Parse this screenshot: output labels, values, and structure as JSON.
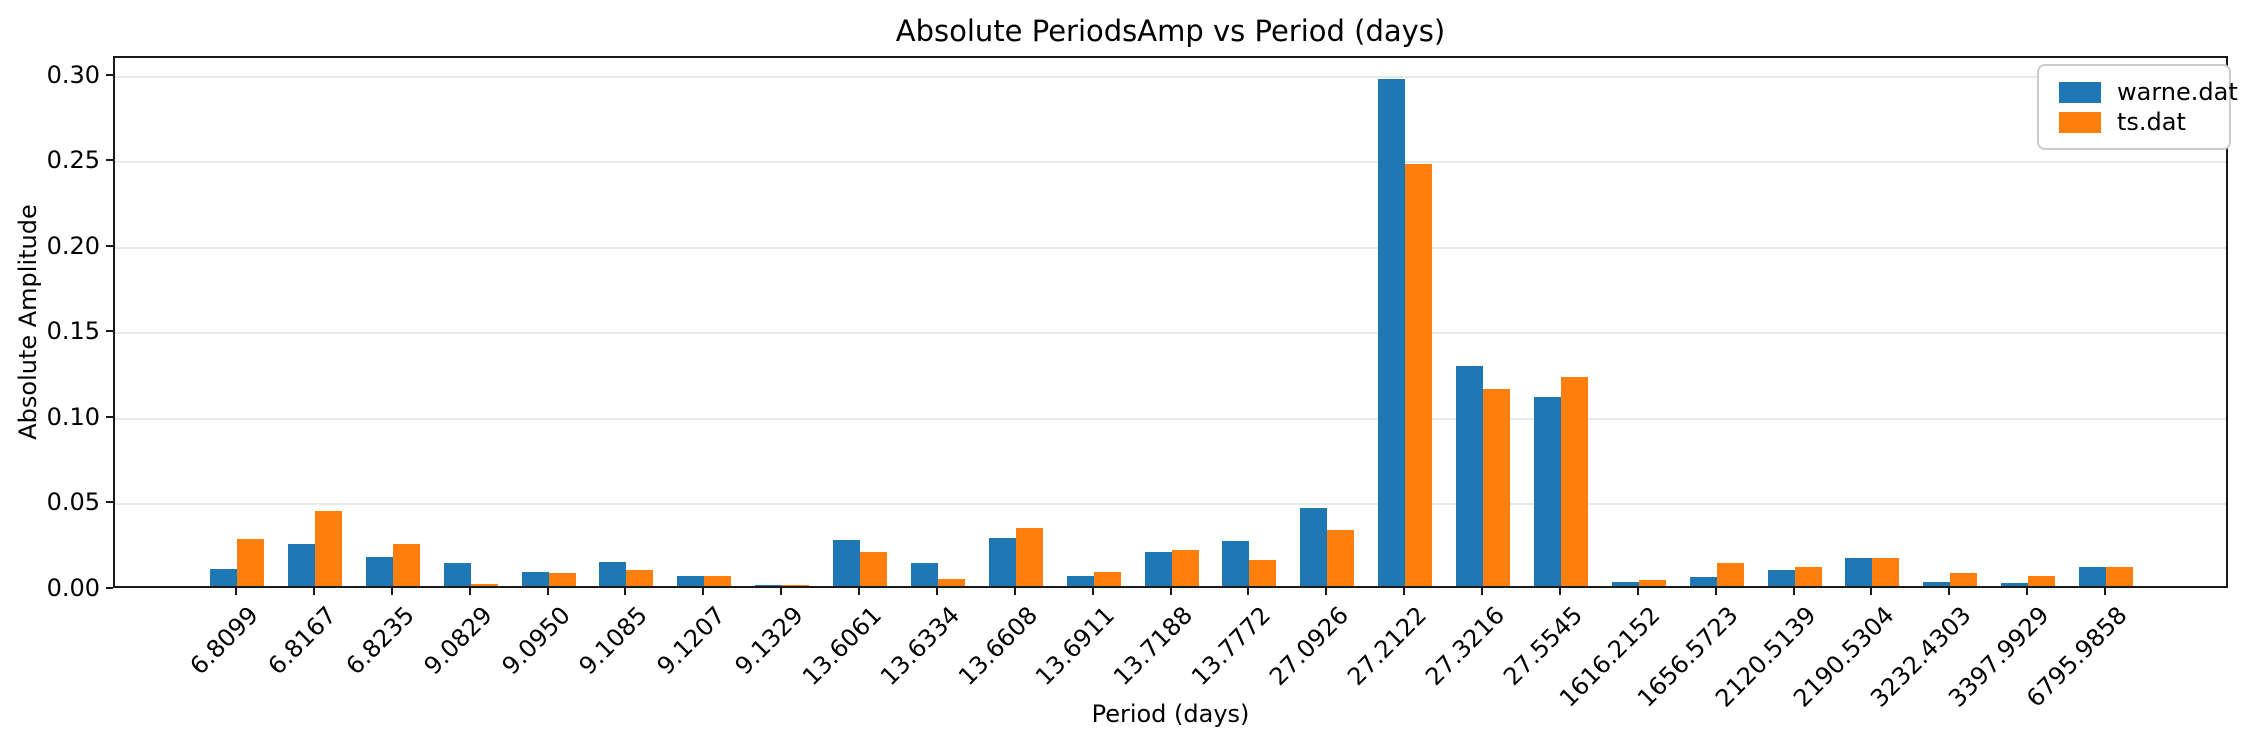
{
  "figure": {
    "title": "Absolute PeriodsAmp vs Period (days)",
    "xlabel": "Period (days)",
    "ylabel": "Absolute Amplitude"
  },
  "legend": {
    "position": "upper right",
    "items": [
      {
        "label": "warne.dat",
        "color": "#1f77b4"
      },
      {
        "label": "ts.dat",
        "color": "#ff7f0e"
      }
    ]
  },
  "chart_data": {
    "type": "bar",
    "title": "Absolute PeriodsAmp vs Period (days)",
    "xlabel": "Period (days)",
    "ylabel": "Absolute Amplitude",
    "categories": [
      "6.8099",
      "6.8167",
      "6.8235",
      "9.0829",
      "9.0950",
      "9.1085",
      "9.1207",
      "9.1329",
      "13.6061",
      "13.6334",
      "13.6608",
      "13.6911",
      "13.7188",
      "13.7772",
      "27.0926",
      "27.2122",
      "27.3216",
      "27.5545",
      "1616.2152",
      "1656.5723",
      "2120.5139",
      "2190.5304",
      "3232.4303",
      "3397.9929",
      "6795.9858"
    ],
    "series": [
      {
        "name": "warne.dat",
        "color": "#1f77b4",
        "values": [
          0.0102,
          0.0245,
          0.0172,
          0.0132,
          0.0083,
          0.014,
          0.0061,
          0.0003,
          0.0268,
          0.0133,
          0.0279,
          0.0056,
          0.0198,
          0.0265,
          0.0455,
          0.2962,
          0.1287,
          0.1106,
          0.0021,
          0.0053,
          0.0096,
          0.0166,
          0.0022,
          0.0018,
          0.0111
        ]
      },
      {
        "name": "ts.dat",
        "color": "#ff7f0e",
        "values": [
          0.0274,
          0.0437,
          0.0245,
          0.0013,
          0.0078,
          0.0096,
          0.0056,
          0.0007,
          0.0198,
          0.004,
          0.0341,
          0.0083,
          0.021,
          0.0152,
          0.0326,
          0.2468,
          0.1153,
          0.1219,
          0.0035,
          0.0136,
          0.011,
          0.0162,
          0.0074,
          0.0059,
          0.0111
        ]
      }
    ],
    "ylim": [
      0,
      0.311
    ],
    "yticks": [
      0.0,
      0.05,
      0.1,
      0.15,
      0.2,
      0.25,
      0.3
    ],
    "ytick_labels": [
      "0.00",
      "0.05",
      "0.10",
      "0.15",
      "0.20",
      "0.25",
      "0.30"
    ],
    "grid": "horizontal",
    "xtick_rotation_deg": 45,
    "legend_position": "upper right"
  }
}
